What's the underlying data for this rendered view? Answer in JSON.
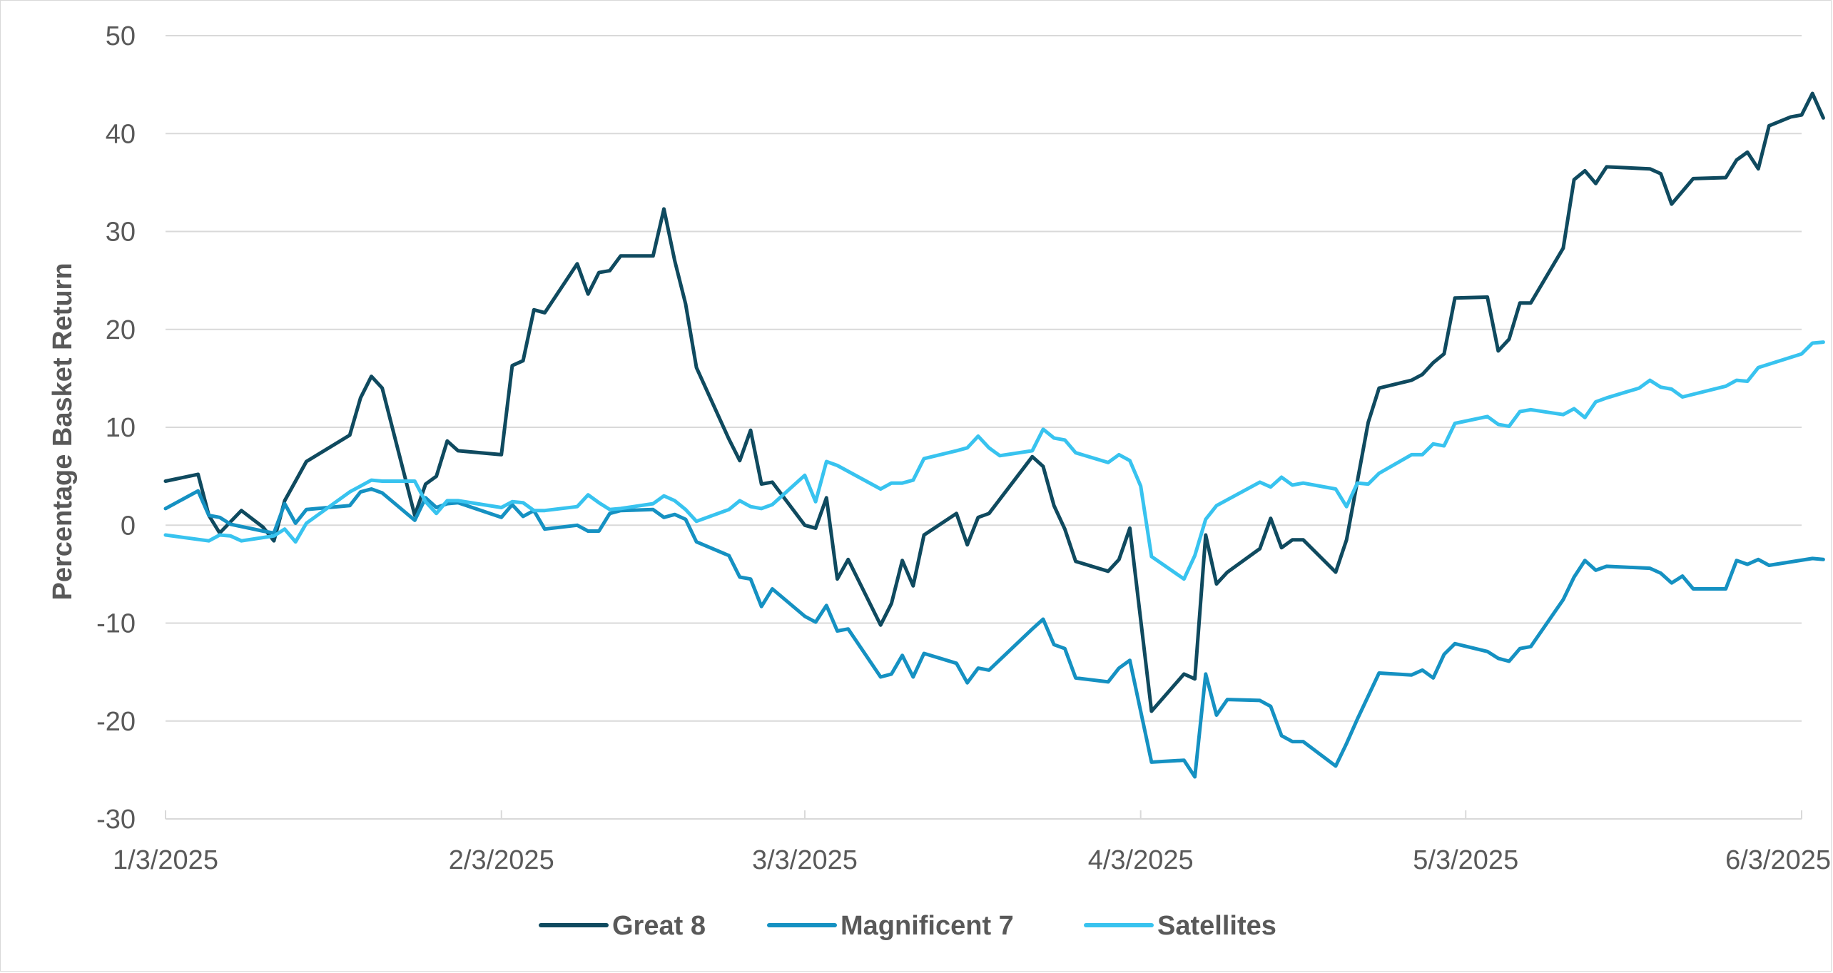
{
  "chart_data": {
    "type": "line",
    "title": "",
    "xlabel": "",
    "ylabel": "Percentage Basket Return",
    "ylim": [
      -30,
      50
    ],
    "yticks": [
      50,
      40,
      30,
      20,
      10,
      0,
      -10,
      -20,
      -30
    ],
    "ytick_labels": [
      "50",
      "40",
      "30",
      "20",
      "10",
      "0",
      "-10",
      "-20",
      "-30"
    ],
    "x_start_day": 0,
    "x_end_day": 151,
    "xticks": [
      0,
      31,
      59,
      90,
      120,
      151
    ],
    "xtick_labels": [
      "1/3/2025",
      "2/3/2025",
      "3/3/2025",
      "4/3/2025",
      "5/3/2025",
      "6/3/2025"
    ],
    "grid": "horizontal",
    "legend_position": "bottom",
    "series": [
      {
        "name": "Great 8",
        "color": "#0f4a5f",
        "points": [
          [
            0,
            4.5
          ],
          [
            3,
            5.2
          ],
          [
            4,
            1
          ],
          [
            5,
            -0.8
          ],
          [
            7,
            1.5
          ],
          [
            9,
            -0.2
          ],
          [
            10,
            -1.6
          ],
          [
            11,
            2.5
          ],
          [
            12,
            4.5
          ],
          [
            13,
            6.5
          ],
          [
            17,
            9.2
          ],
          [
            18,
            13
          ],
          [
            19,
            15.2
          ],
          [
            20,
            14
          ],
          [
            23,
            1
          ],
          [
            24,
            4.2
          ],
          [
            25,
            5
          ],
          [
            26,
            8.6
          ],
          [
            27,
            7.6
          ],
          [
            31,
            7.2
          ],
          [
            32,
            16.3
          ],
          [
            33,
            16.8
          ],
          [
            34,
            22
          ],
          [
            35,
            21.7
          ],
          [
            38,
            26.7
          ],
          [
            39,
            23.6
          ],
          [
            40,
            25.8
          ],
          [
            41,
            26
          ],
          [
            42,
            27.5
          ],
          [
            45,
            27.5
          ],
          [
            46,
            32.3
          ],
          [
            47,
            27
          ],
          [
            48,
            22.6
          ],
          [
            49,
            16.1
          ],
          [
            52,
            8.8
          ],
          [
            53,
            6.6
          ],
          [
            54,
            9.7
          ],
          [
            55,
            4.2
          ],
          [
            56,
            4.4
          ],
          [
            59,
            0
          ],
          [
            60,
            -0.3
          ],
          [
            61,
            2.8
          ],
          [
            62,
            -5.5
          ],
          [
            63,
            -3.5
          ],
          [
            66,
            -10.2
          ],
          [
            67,
            -8
          ],
          [
            68,
            -3.6
          ],
          [
            69,
            -6.2
          ],
          [
            70,
            -1
          ],
          [
            73,
            1.2
          ],
          [
            74,
            -2
          ],
          [
            75,
            0.8
          ],
          [
            76,
            1.2
          ],
          [
            80,
            7
          ],
          [
            81,
            6
          ],
          [
            82,
            2
          ],
          [
            83,
            -0.4
          ],
          [
            84,
            -3.7
          ],
          [
            87,
            -4.7
          ],
          [
            88,
            -3.5
          ],
          [
            89,
            -0.3
          ],
          [
            91,
            -19
          ],
          [
            94,
            -15.2
          ],
          [
            95,
            -15.7
          ],
          [
            96,
            -1
          ],
          [
            97,
            -6
          ],
          [
            98,
            -4.8
          ],
          [
            101,
            -2.4
          ],
          [
            102,
            0.7
          ],
          [
            103,
            -2.3
          ],
          [
            104,
            -1.5
          ],
          [
            105,
            -1.5
          ],
          [
            108,
            -4.8
          ],
          [
            109,
            -1.5
          ],
          [
            111,
            10.5
          ],
          [
            112,
            14
          ],
          [
            115,
            14.8
          ],
          [
            116,
            15.4
          ],
          [
            117,
            16.6
          ],
          [
            118,
            17.5
          ],
          [
            119,
            23.2
          ],
          [
            122,
            23.3
          ],
          [
            123,
            17.8
          ],
          [
            124,
            19
          ],
          [
            125,
            22.7
          ],
          [
            126,
            22.7
          ],
          [
            129,
            28.3
          ],
          [
            130,
            35.3
          ],
          [
            131,
            36.2
          ],
          [
            132,
            34.9
          ],
          [
            133,
            36.6
          ],
          [
            137,
            36.4
          ],
          [
            138,
            35.9
          ],
          [
            139,
            32.8
          ],
          [
            141,
            35.4
          ],
          [
            144,
            35.5
          ],
          [
            145,
            37.3
          ],
          [
            146,
            38.1
          ],
          [
            147,
            36.4
          ],
          [
            148,
            40.8
          ],
          [
            150,
            41.7
          ],
          [
            151,
            41.9
          ],
          [
            152,
            44.1
          ],
          [
            153,
            41.6
          ]
        ]
      },
      {
        "name": "Magnificent 7",
        "color": "#1591c2",
        "points": [
          [
            0,
            1.7
          ],
          [
            3,
            3.5
          ],
          [
            4,
            1
          ],
          [
            5,
            0.8
          ],
          [
            6,
            0.1
          ],
          [
            9,
            -0.6
          ],
          [
            10,
            -0.8
          ],
          [
            11,
            2.2
          ],
          [
            12,
            0.2
          ],
          [
            13,
            1.6
          ],
          [
            17,
            2
          ],
          [
            18,
            3.4
          ],
          [
            19,
            3.7
          ],
          [
            20,
            3.3
          ],
          [
            23,
            0.5
          ],
          [
            24,
            2.8
          ],
          [
            25,
            1.8
          ],
          [
            26,
            2.2
          ],
          [
            27,
            2.3
          ],
          [
            31,
            0.8
          ],
          [
            32,
            2.1
          ],
          [
            33,
            0.9
          ],
          [
            34,
            1.5
          ],
          [
            35,
            -0.4
          ],
          [
            38,
            0
          ],
          [
            39,
            -0.6
          ],
          [
            40,
            -0.6
          ],
          [
            41,
            1.2
          ],
          [
            42,
            1.5
          ],
          [
            45,
            1.6
          ],
          [
            46,
            0.8
          ],
          [
            47,
            1.1
          ],
          [
            48,
            0.6
          ],
          [
            49,
            -1.7
          ],
          [
            52,
            -3.1
          ],
          [
            53,
            -5.3
          ],
          [
            54,
            -5.5
          ],
          [
            55,
            -8.3
          ],
          [
            56,
            -6.5
          ],
          [
            59,
            -9.3
          ],
          [
            60,
            -9.9
          ],
          [
            61,
            -8.2
          ],
          [
            62,
            -10.8
          ],
          [
            63,
            -10.6
          ],
          [
            66,
            -15.5
          ],
          [
            67,
            -15.2
          ],
          [
            68,
            -13.3
          ],
          [
            69,
            -15.5
          ],
          [
            70,
            -13.1
          ],
          [
            73,
            -14.1
          ],
          [
            74,
            -16.1
          ],
          [
            75,
            -14.6
          ],
          [
            76,
            -14.8
          ],
          [
            80,
            -10.6
          ],
          [
            81,
            -9.6
          ],
          [
            82,
            -12.2
          ],
          [
            83,
            -12.6
          ],
          [
            84,
            -15.6
          ],
          [
            87,
            -16
          ],
          [
            88,
            -14.6
          ],
          [
            89,
            -13.8
          ],
          [
            90,
            -19
          ],
          [
            91,
            -24.2
          ],
          [
            94,
            -24
          ],
          [
            95,
            -25.7
          ],
          [
            96,
            -15.2
          ],
          [
            97,
            -19.4
          ],
          [
            98,
            -17.8
          ],
          [
            101,
            -17.9
          ],
          [
            102,
            -18.5
          ],
          [
            103,
            -21.5
          ],
          [
            104,
            -22.1
          ],
          [
            105,
            -22.1
          ],
          [
            108,
            -24.6
          ],
          [
            109,
            -22.3
          ],
          [
            110,
            -19.8
          ],
          [
            112,
            -15.1
          ],
          [
            115,
            -15.3
          ],
          [
            116,
            -14.8
          ],
          [
            117,
            -15.6
          ],
          [
            118,
            -13.2
          ],
          [
            119,
            -12.1
          ],
          [
            122,
            -12.9
          ],
          [
            123,
            -13.6
          ],
          [
            124,
            -13.9
          ],
          [
            125,
            -12.6
          ],
          [
            126,
            -12.4
          ],
          [
            129,
            -7.6
          ],
          [
            130,
            -5.3
          ],
          [
            131,
            -3.6
          ],
          [
            132,
            -4.6
          ],
          [
            133,
            -4.2
          ],
          [
            137,
            -4.4
          ],
          [
            138,
            -4.9
          ],
          [
            139,
            -5.9
          ],
          [
            140,
            -5.2
          ],
          [
            141,
            -6.5
          ],
          [
            144,
            -6.5
          ],
          [
            145,
            -3.6
          ],
          [
            146,
            -4
          ],
          [
            147,
            -3.5
          ],
          [
            148,
            -4.1
          ],
          [
            152,
            -3.4
          ],
          [
            153,
            -3.5
          ]
        ]
      },
      {
        "name": "Satellites",
        "color": "#38c3ef",
        "points": [
          [
            0,
            -1
          ],
          [
            4,
            -1.6
          ],
          [
            5,
            -1
          ],
          [
            6,
            -1.1
          ],
          [
            7,
            -1.6
          ],
          [
            10,
            -1.1
          ],
          [
            11,
            -0.4
          ],
          [
            12,
            -1.7
          ],
          [
            13,
            0.2
          ],
          [
            17,
            3.4
          ],
          [
            18,
            4
          ],
          [
            19,
            4.6
          ],
          [
            20,
            4.5
          ],
          [
            23,
            4.5
          ],
          [
            24,
            2.4
          ],
          [
            25,
            1.2
          ],
          [
            26,
            2.5
          ],
          [
            27,
            2.5
          ],
          [
            31,
            1.8
          ],
          [
            32,
            2.4
          ],
          [
            33,
            2.3
          ],
          [
            34,
            1.5
          ],
          [
            35,
            1.5
          ],
          [
            38,
            1.9
          ],
          [
            39,
            3.1
          ],
          [
            40,
            2.3
          ],
          [
            41,
            1.6
          ],
          [
            42,
            1.7
          ],
          [
            45,
            2.2
          ],
          [
            46,
            3
          ],
          [
            47,
            2.5
          ],
          [
            48,
            1.6
          ],
          [
            49,
            0.4
          ],
          [
            52,
            1.6
          ],
          [
            53,
            2.5
          ],
          [
            54,
            1.9
          ],
          [
            55,
            1.7
          ],
          [
            56,
            2.1
          ],
          [
            59,
            5.1
          ],
          [
            60,
            2.4
          ],
          [
            61,
            6.5
          ],
          [
            62,
            6.1
          ],
          [
            66,
            3.7
          ],
          [
            67,
            4.3
          ],
          [
            68,
            4.3
          ],
          [
            69,
            4.6
          ],
          [
            70,
            6.8
          ],
          [
            73,
            7.6
          ],
          [
            74,
            7.9
          ],
          [
            75,
            9.1
          ],
          [
            76,
            7.9
          ],
          [
            77,
            7.1
          ],
          [
            80,
            7.6
          ],
          [
            81,
            9.8
          ],
          [
            82,
            8.9
          ],
          [
            83,
            8.7
          ],
          [
            84,
            7.4
          ],
          [
            87,
            6.4
          ],
          [
            88,
            7.2
          ],
          [
            89,
            6.6
          ],
          [
            90,
            4
          ],
          [
            91,
            -3.2
          ],
          [
            94,
            -5.5
          ],
          [
            95,
            -3.1
          ],
          [
            96,
            0.6
          ],
          [
            97,
            2
          ],
          [
            98,
            2.6
          ],
          [
            101,
            4.4
          ],
          [
            102,
            3.9
          ],
          [
            103,
            4.9
          ],
          [
            104,
            4.1
          ],
          [
            105,
            4.3
          ],
          [
            108,
            3.7
          ],
          [
            109,
            1.9
          ],
          [
            110,
            4.3
          ],
          [
            111,
            4.2
          ],
          [
            112,
            5.3
          ],
          [
            115,
            7.2
          ],
          [
            116,
            7.2
          ],
          [
            117,
            8.3
          ],
          [
            118,
            8.1
          ],
          [
            119,
            10.4
          ],
          [
            122,
            11.1
          ],
          [
            123,
            10.3
          ],
          [
            124,
            10.1
          ],
          [
            125,
            11.6
          ],
          [
            126,
            11.8
          ],
          [
            129,
            11.3
          ],
          [
            130,
            11.9
          ],
          [
            131,
            11
          ],
          [
            132,
            12.6
          ],
          [
            133,
            13
          ],
          [
            136,
            14
          ],
          [
            137,
            14.8
          ],
          [
            138,
            14.1
          ],
          [
            139,
            13.9
          ],
          [
            140,
            13.1
          ],
          [
            144,
            14.2
          ],
          [
            145,
            14.8
          ],
          [
            146,
            14.7
          ],
          [
            147,
            16.1
          ],
          [
            151,
            17.5
          ],
          [
            152,
            18.6
          ],
          [
            153,
            18.7
          ]
        ]
      }
    ]
  }
}
